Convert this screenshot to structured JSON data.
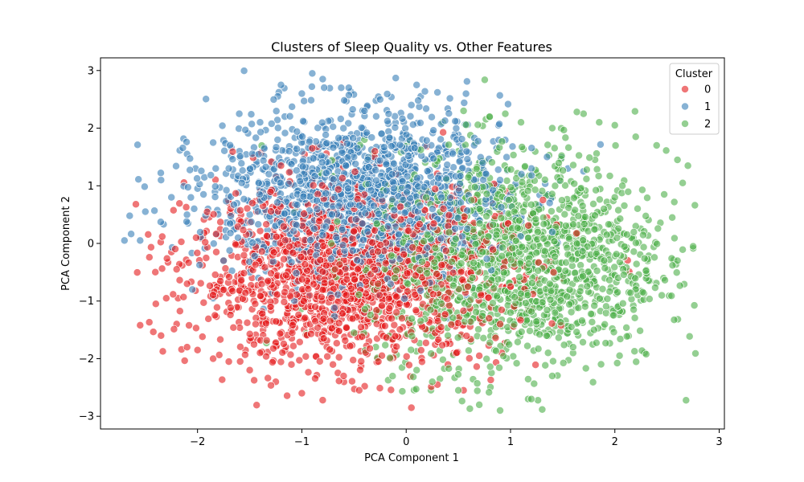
{
  "chart_data": {
    "type": "scatter",
    "title": "Clusters of Sleep Quality vs. Other Features",
    "xlabel": "PCA Component 1",
    "ylabel": "PCA Component 2",
    "xlim": [
      -2.93,
      3.05
    ],
    "ylim": [
      -3.22,
      3.22
    ],
    "xticks": [
      -2,
      -1,
      0,
      1,
      2,
      3
    ],
    "yticks": [
      -3,
      -2,
      -1,
      0,
      1,
      2,
      3
    ],
    "xtick_labels": [
      "−2",
      "−1",
      "0",
      "1",
      "2",
      "3"
    ],
    "ytick_labels": [
      "−3",
      "−2",
      "−1",
      "0",
      "1",
      "2",
      "3"
    ],
    "grid": false,
    "legend": {
      "title": "Cluster",
      "placement": "top-right"
    },
    "point_counts": {
      "0": 1650,
      "1": 1500,
      "2": 1450
    },
    "series": [
      {
        "name": "0",
        "color": "#e41a1c",
        "center": [
          -0.55,
          -0.55
        ],
        "spread": [
          0.75,
          0.75
        ],
        "values": [
          [
            -2.55,
            -1.42
          ],
          [
            -2.4,
            -1.05
          ],
          [
            -2.35,
            -1.6
          ],
          [
            -2.3,
            -0.95
          ],
          [
            -2.2,
            -1.4
          ],
          [
            -2.1,
            -1.8
          ],
          [
            -2.0,
            -1.85
          ],
          [
            -1.85,
            -2.0
          ],
          [
            -1.7,
            -2.05
          ],
          [
            -1.5,
            -2.2
          ],
          [
            -1.25,
            -2.4
          ],
          [
            -1.0,
            -2.6
          ],
          [
            -0.8,
            -2.72
          ],
          [
            -0.45,
            -2.55
          ],
          [
            0.05,
            -2.85
          ],
          [
            0.3,
            -2.45
          ],
          [
            0.55,
            -2.55
          ],
          [
            0.4,
            -2.1
          ],
          [
            0.7,
            -1.95
          ],
          [
            -0.15,
            -2.0
          ],
          [
            -0.6,
            -2.3
          ],
          [
            -1.1,
            -2.1
          ],
          [
            -1.4,
            -1.9
          ],
          [
            -2.1,
            -0.7
          ],
          [
            -2.25,
            -0.15
          ],
          [
            -2.2,
            -0.45
          ],
          [
            -1.95,
            0.1
          ],
          [
            -1.75,
            -0.3
          ],
          [
            -1.6,
            0.4
          ],
          [
            -1.4,
            0.9
          ],
          [
            -1.2,
            1.35
          ],
          [
            -0.9,
            1.65
          ],
          [
            -0.6,
            1.75
          ],
          [
            -0.3,
            1.6
          ],
          [
            -0.1,
            1.2
          ],
          [
            0.2,
            0.9
          ],
          [
            0.5,
            0.4
          ],
          [
            0.8,
            0.3
          ],
          [
            1.0,
            -0.1
          ],
          [
            1.15,
            -0.55
          ],
          [
            1.2,
            0.5
          ],
          [
            1.35,
            0.45
          ],
          [
            0.9,
            -1.4
          ],
          [
            0.75,
            -0.9
          ],
          [
            1.0,
            -0.75
          ],
          [
            0.6,
            -1.2
          ],
          [
            0.4,
            -0.6
          ],
          [
            0.1,
            -0.3
          ],
          [
            -0.2,
            -0.1
          ],
          [
            -0.5,
            0.2
          ],
          [
            -0.8,
            -0.6
          ],
          [
            -1.1,
            -0.4
          ],
          [
            -1.3,
            -1.1
          ],
          [
            -0.9,
            -1.5
          ],
          [
            -0.4,
            -1.2
          ],
          [
            0.0,
            -1.6
          ],
          [
            0.3,
            -1.3
          ]
        ]
      },
      {
        "name": "1",
        "color": "#377eb8",
        "center": [
          -0.45,
          0.85
        ],
        "spread": [
          0.7,
          0.72
        ],
        "values": [
          [
            -2.65,
            0.48
          ],
          [
            -2.5,
            0.55
          ],
          [
            -2.7,
            0.05
          ],
          [
            -2.55,
            0.05
          ],
          [
            -2.35,
            1.1
          ],
          [
            -2.25,
            0.8
          ],
          [
            -2.1,
            1.55
          ],
          [
            -1.85,
            1.75
          ],
          [
            -1.6,
            2.25
          ],
          [
            -1.2,
            2.75
          ],
          [
            -0.9,
            2.95
          ],
          [
            -0.8,
            2.85
          ],
          [
            -0.55,
            2.7
          ],
          [
            -0.25,
            2.5
          ],
          [
            -0.1,
            2.87
          ],
          [
            0.1,
            2.75
          ],
          [
            0.3,
            2.62
          ],
          [
            0.05,
            2.4
          ],
          [
            -0.4,
            2.3
          ],
          [
            -1.0,
            2.6
          ],
          [
            -1.4,
            2.1
          ],
          [
            -1.9,
            0.6
          ],
          [
            -2.0,
            0.95
          ],
          [
            -1.7,
            1.3
          ],
          [
            -1.5,
            0.5
          ],
          [
            -1.2,
            1.0
          ],
          [
            -0.9,
            1.3
          ],
          [
            -0.7,
            0.6
          ],
          [
            -0.5,
            1.5
          ],
          [
            -0.2,
            0.9
          ],
          [
            0.1,
            1.1
          ],
          [
            0.3,
            1.6
          ],
          [
            0.6,
            1.4
          ],
          [
            0.9,
            1.1
          ],
          [
            1.2,
            1.3
          ],
          [
            1.35,
            1.5
          ],
          [
            1.4,
            0.2
          ],
          [
            1.55,
            1.3
          ],
          [
            1.7,
            1.25
          ],
          [
            1.05,
            0.45
          ],
          [
            0.7,
            -0.15
          ],
          [
            0.4,
            -1.3
          ],
          [
            -0.25,
            -0.9
          ],
          [
            -0.7,
            -0.45
          ],
          [
            -1.05,
            -0.8
          ],
          [
            -1.5,
            -0.5
          ],
          [
            -1.75,
            -0.3
          ],
          [
            -2.05,
            -0.8
          ],
          [
            -1.85,
            -0.95
          ],
          [
            -0.3,
            0.1
          ]
        ]
      },
      {
        "name": "2",
        "color": "#4daf4a",
        "center": [
          1.05,
          -0.3
        ],
        "spread": [
          0.72,
          0.95
        ],
        "values": [
          [
            0.35,
            2.1
          ],
          [
            0.55,
            2.3
          ],
          [
            0.8,
            2.2
          ],
          [
            0.95,
            2.25
          ],
          [
            1.1,
            2.1
          ],
          [
            1.4,
            2.0
          ],
          [
            1.7,
            2.25
          ],
          [
            1.85,
            2.1
          ],
          [
            2.0,
            2.05
          ],
          [
            2.2,
            1.85
          ],
          [
            2.4,
            1.7
          ],
          [
            2.6,
            1.45
          ],
          [
            2.7,
            1.35
          ],
          [
            2.65,
            1.05
          ],
          [
            2.55,
            0.45
          ],
          [
            2.75,
            -0.05
          ],
          [
            2.6,
            -0.3
          ],
          [
            2.45,
            -0.9
          ],
          [
            2.2,
            -0.8
          ],
          [
            2.0,
            -1.2
          ],
          [
            1.8,
            -1.5
          ],
          [
            1.6,
            -1.8
          ],
          [
            1.4,
            -2.3
          ],
          [
            1.2,
            -2.7
          ],
          [
            0.9,
            -2.9
          ],
          [
            0.7,
            -2.8
          ],
          [
            0.5,
            -2.55
          ],
          [
            0.25,
            -2.4
          ],
          [
            0.1,
            -2.2
          ],
          [
            -0.5,
            -1.55
          ],
          [
            -0.7,
            -1.3
          ],
          [
            -0.35,
            -0.7
          ],
          [
            -0.2,
            -0.3
          ],
          [
            0.1,
            0.2
          ],
          [
            0.3,
            0.8
          ],
          [
            0.5,
            1.6
          ],
          [
            0.8,
            1.0
          ],
          [
            1.0,
            0.5
          ],
          [
            1.2,
            -0.2
          ],
          [
            1.4,
            0.8
          ],
          [
            1.6,
            0.3
          ],
          [
            1.8,
            -0.4
          ],
          [
            2.0,
            0.8
          ],
          [
            2.2,
            0.3
          ],
          [
            1.5,
            -1.0
          ],
          [
            1.25,
            -1.4
          ],
          [
            1.0,
            -1.2
          ],
          [
            0.7,
            -0.8
          ],
          [
            0.4,
            -1.6
          ],
          [
            0.2,
            -0.9
          ]
        ]
      }
    ]
  }
}
